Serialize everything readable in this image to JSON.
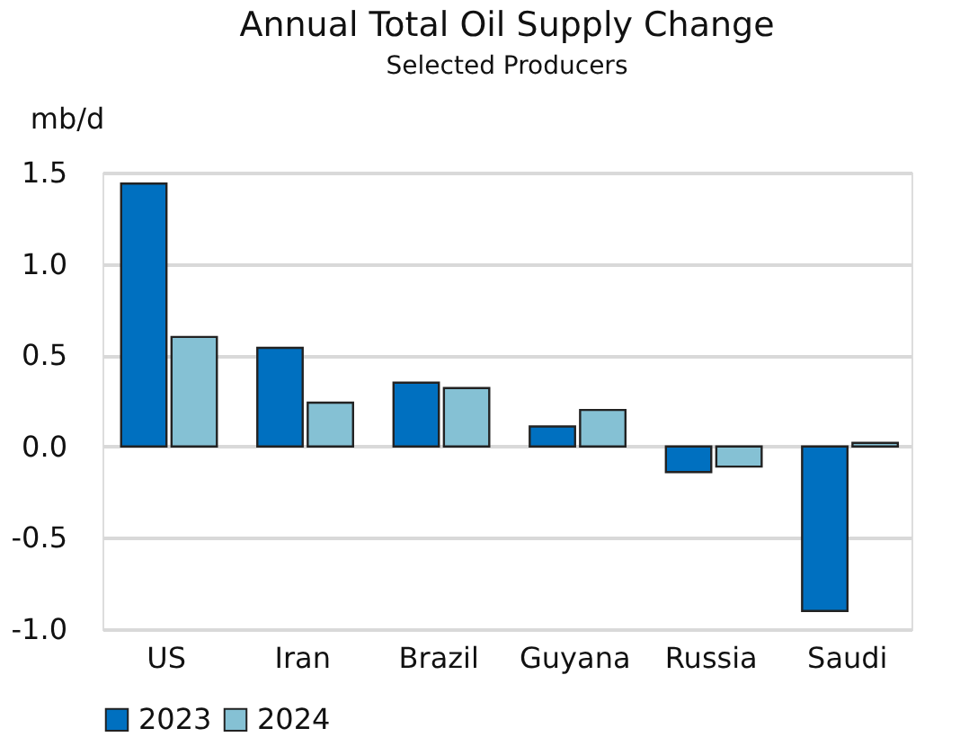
{
  "chart_data": {
    "type": "bar",
    "title": "Annual Total Oil Supply Change",
    "subtitle": "Selected Producers",
    "ylabel": "mb/d",
    "categories": [
      "US",
      "Iran",
      "Brazil",
      "Guyana",
      "Russia",
      "Saudi"
    ],
    "series": [
      {
        "name": "2023",
        "color": "#0070c0",
        "values": [
          1.44,
          0.54,
          0.35,
          0.11,
          -0.14,
          -0.9
        ]
      },
      {
        "name": "2024",
        "color": "#85c1d4",
        "values": [
          0.6,
          0.24,
          0.32,
          0.2,
          -0.11,
          0.02
        ]
      }
    ],
    "ylim": [
      -1.0,
      1.5
    ],
    "yticks": [
      {
        "value": 1.5,
        "label": "1.5"
      },
      {
        "value": 1.0,
        "label": "1.0"
      },
      {
        "value": 0.5,
        "label": "0.5"
      },
      {
        "value": 0.0,
        "label": "0.0"
      },
      {
        "value": -0.5,
        "label": "-0.5"
      },
      {
        "value": -1.0,
        "label": "-1.0"
      }
    ],
    "grid": "y",
    "legend": "bottom"
  }
}
